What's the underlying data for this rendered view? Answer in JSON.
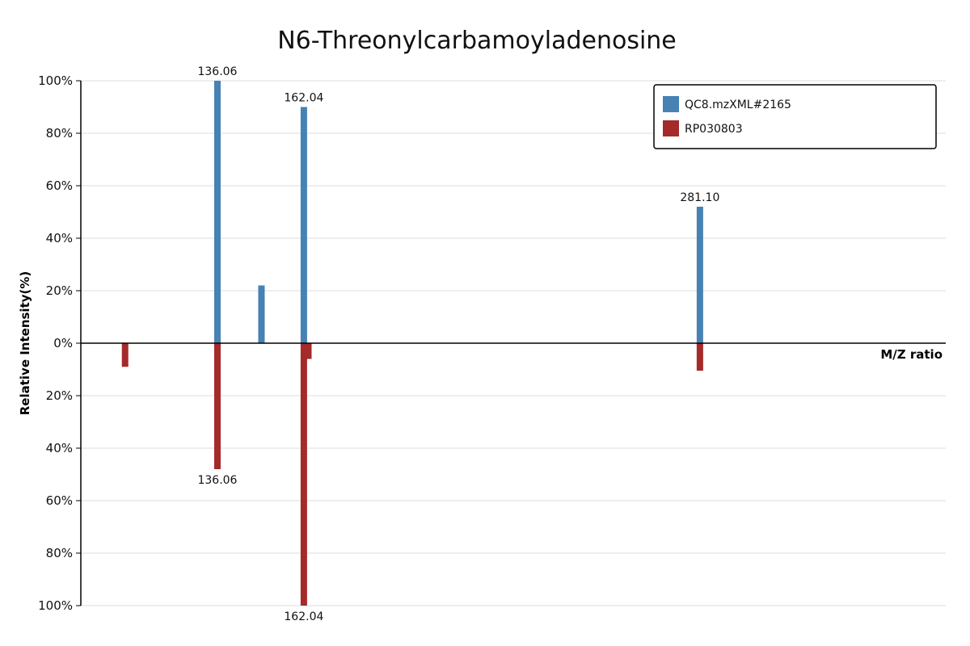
{
  "chart_data": {
    "type": "bar",
    "title": "N6-Threonylcarbamoyladenosine",
    "xlabel": "M/Z ratio",
    "ylabel": "Relative Intensity(%)",
    "ylim": [
      -100,
      100
    ],
    "xlim": [
      95,
      355
    ],
    "grid": true,
    "legend_position": "top-right",
    "y_ticks": [
      "100%",
      "80%",
      "60%",
      "40%",
      "20%",
      "0%",
      "20%",
      "40%",
      "60%",
      "80%",
      "100%"
    ],
    "series": [
      {
        "name": "QC8.mzXML#2165",
        "color": "#4682b4",
        "direction": "up",
        "peaks": [
          {
            "mz": 149.3,
            "intensity": 22,
            "label": ""
          },
          {
            "mz": 136.06,
            "intensity": 100,
            "label": "136.06"
          },
          {
            "mz": 162.04,
            "intensity": 90,
            "label": "162.04"
          },
          {
            "mz": 281.1,
            "intensity": 52,
            "label": "281.10"
          }
        ]
      },
      {
        "name": "RP030803",
        "color": "#a52a2a",
        "direction": "down",
        "peaks": [
          {
            "mz": 108.3,
            "intensity": 9,
            "label": ""
          },
          {
            "mz": 136.06,
            "intensity": 48,
            "label": "136.06"
          },
          {
            "mz": 162.04,
            "intensity": 100,
            "label": "162.04"
          },
          {
            "mz": 163.4,
            "intensity": 6,
            "label": ""
          },
          {
            "mz": 281.1,
            "intensity": 10.5,
            "label": ""
          }
        ]
      }
    ]
  }
}
